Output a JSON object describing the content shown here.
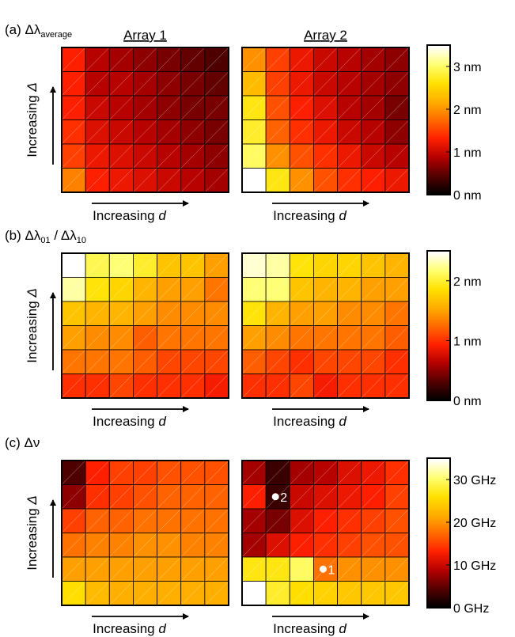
{
  "chart_data": [
    {
      "type": "heatmap",
      "panel_label": "(a)",
      "quantity": "Δλ",
      "quantity_sub": "average",
      "array_titles": [
        "Array 1",
        "Array 2"
      ],
      "xlabel_prefix": "Increasing ",
      "xlabel_var": "d",
      "ylabel_prefix": "Increasing ",
      "ylabel_var": "Δ",
      "colorbar": {
        "min": 0,
        "max": 3.5,
        "ticks": [
          0,
          1,
          2,
          3
        ],
        "tick_labels": [
          "0 nm",
          "1 nm",
          "2 nm",
          "3 nm"
        ]
      },
      "arrays": [
        {
          "name": "Array 1",
          "values": [
            [
              1.3,
              0.9,
              0.8,
              0.7,
              0.6,
              0.5,
              0.4
            ],
            [
              1.3,
              0.9,
              0.9,
              0.8,
              0.7,
              0.6,
              0.5
            ],
            [
              1.3,
              1.0,
              0.9,
              0.8,
              0.7,
              0.6,
              0.6
            ],
            [
              1.4,
              1.1,
              1.0,
              0.9,
              0.8,
              0.7,
              0.6
            ],
            [
              1.5,
              1.2,
              1.1,
              1.0,
              0.9,
              0.8,
              0.7
            ],
            [
              1.9,
              1.3,
              1.2,
              1.1,
              1.0,
              0.9,
              0.8
            ]
          ]
        },
        {
          "name": "Array 2",
          "values": [
            [
              2.0,
              1.5,
              1.2,
              1.0,
              0.9,
              0.8,
              0.7
            ],
            [
              2.3,
              1.5,
              1.2,
              1.0,
              0.9,
              0.8,
              0.7
            ],
            [
              2.7,
              1.6,
              1.3,
              1.1,
              0.9,
              0.8,
              0.6
            ],
            [
              2.8,
              1.7,
              1.4,
              1.2,
              1.0,
              0.9,
              0.7
            ],
            [
              3.0,
              2.0,
              1.6,
              1.4,
              1.2,
              1.0,
              0.9
            ],
            [
              3.5,
              2.7,
              2.0,
              1.6,
              1.4,
              1.3,
              1.2
            ]
          ]
        }
      ]
    },
    {
      "type": "heatmap",
      "panel_label": "(b)",
      "quantity": "Δλ",
      "quantity_sub": "01",
      "quantity_sep": " / ",
      "quantity2": "Δλ",
      "quantity2_sub": "10",
      "array_titles": [],
      "xlabel_prefix": "Increasing ",
      "xlabel_var": "d",
      "ylabel_prefix": "Increasing ",
      "ylabel_var": "Δ",
      "colorbar": {
        "min": 0,
        "max": 2.5,
        "ticks": [
          0,
          1,
          2
        ],
        "tick_labels": [
          "0 nm",
          "1 nm",
          "2 nm"
        ]
      },
      "arrays": [
        {
          "name": "Array 1",
          "values": [
            [
              2.5,
              2.1,
              2.2,
              2.0,
              1.7,
              1.7,
              1.5
            ],
            [
              2.3,
              1.9,
              1.8,
              1.6,
              1.5,
              1.5,
              1.3
            ],
            [
              1.7,
              1.6,
              1.6,
              1.5,
              1.4,
              1.4,
              1.4
            ],
            [
              1.5,
              1.4,
              1.4,
              1.2,
              1.3,
              1.3,
              1.3
            ],
            [
              1.3,
              1.3,
              1.3,
              1.2,
              1.1,
              1.1,
              1.1
            ],
            [
              1.0,
              1.0,
              1.1,
              1.0,
              1.0,
              1.0,
              0.9
            ]
          ]
        },
        {
          "name": "Array 2",
          "values": [
            [
              2.4,
              2.3,
              1.9,
              1.8,
              1.8,
              1.7,
              1.6
            ],
            [
              2.2,
              2.2,
              1.7,
              1.6,
              1.6,
              1.5,
              1.5
            ],
            [
              1.9,
              1.6,
              1.5,
              1.5,
              1.4,
              1.4,
              1.3
            ],
            [
              1.5,
              1.4,
              1.3,
              1.3,
              1.3,
              1.3,
              1.2
            ],
            [
              1.2,
              1.1,
              1.0,
              1.1,
              1.1,
              1.1,
              1.0
            ],
            [
              1.0,
              1.0,
              1.1,
              0.9,
              1.0,
              1.0,
              1.0
            ]
          ]
        }
      ]
    },
    {
      "type": "heatmap",
      "panel_label": "(c)",
      "quantity": "Δν",
      "quantity_sub": "",
      "array_titles": [],
      "xlabel_prefix": "Increasing ",
      "xlabel_var": "d",
      "ylabel_prefix": "Increasing ",
      "ylabel_var": "Δ",
      "colorbar": {
        "min": 0,
        "max": 35,
        "ticks": [
          0,
          10,
          20,
          30
        ],
        "tick_labels": [
          "0 GHz",
          "10 GHz",
          "20 GHz",
          "30 GHz"
        ]
      },
      "arrays": [
        {
          "name": "Array 1",
          "values": [
            [
              4,
              13,
              15,
              15,
              16,
              16,
              16
            ],
            [
              7,
              14,
              15,
              16,
              17,
              17,
              17
            ],
            [
              15,
              17,
              17,
              18,
              18,
              18,
              18
            ],
            [
              18,
              19,
              19,
              20,
              20,
              19,
              19
            ],
            [
              21,
              21,
              21,
              21,
              21,
              21,
              21
            ],
            [
              26,
              23,
              22,
              22,
              22,
              22,
              22
            ]
          ]
        },
        {
          "name": "Array 2",
          "values": [
            [
              8,
              3,
              8,
              9,
              11,
              12,
              14
            ],
            [
              13,
              3,
              10,
              11,
              12,
              13,
              15
            ],
            [
              8,
              6,
              11,
              13,
              14,
              15,
              16
            ],
            [
              8,
              11,
              13,
              14,
              15,
              16,
              16
            ],
            [
              27,
              27,
              30,
              18,
              20,
              20,
              20
            ],
            [
              35,
              28,
              26,
              25,
              24,
              24,
              24
            ]
          ]
        }
      ],
      "markers": [
        {
          "label": "2",
          "array": 1,
          "row": 1,
          "col": 1
        },
        {
          "label": "1",
          "array": 1,
          "row": 4,
          "col": 3
        }
      ]
    }
  ],
  "colors": {
    "colormap": [
      "#000000",
      "#550000",
      "#b40000",
      "#ff2000",
      "#ff6a00",
      "#ffae00",
      "#ffe100",
      "#ffff70",
      "#ffffff"
    ],
    "grid": "#000000",
    "diagonal": "#ffffff",
    "marker": "#ffffff"
  }
}
